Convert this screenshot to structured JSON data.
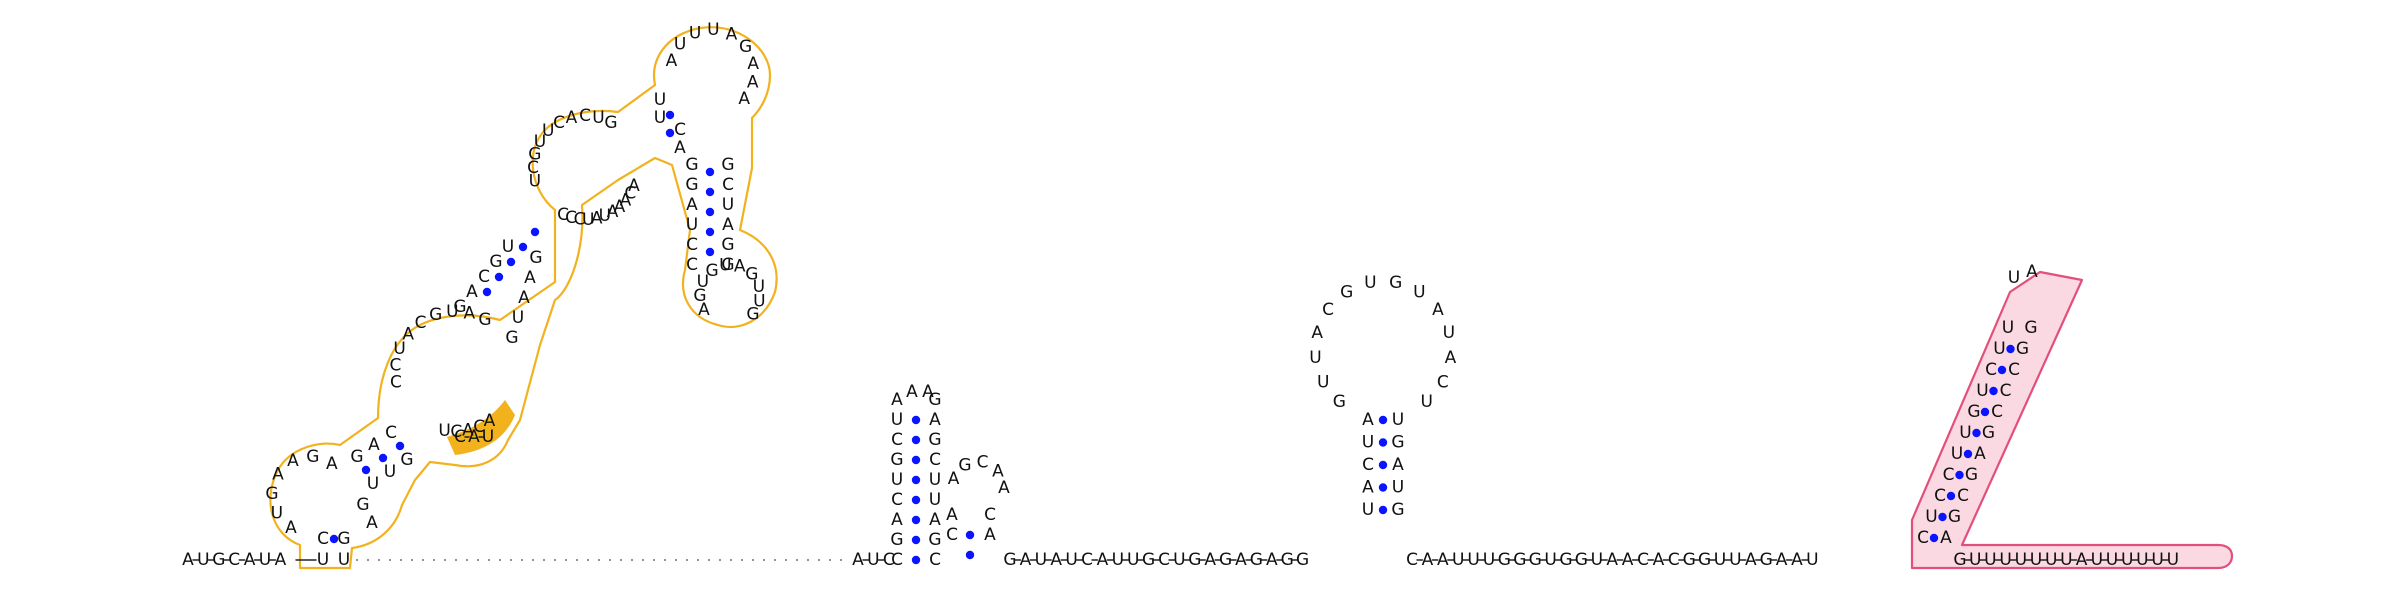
{
  "diagram": {
    "kind": "RNA secondary structure",
    "colors": {
      "background": "#ffffff",
      "base_pair_dot": "#0a14ff",
      "domain1_outline": "#f2b21e",
      "domain1_fill": "#ffffff",
      "domain1_highlight": "#f2b21e",
      "domain2_outline": "#e34f7b",
      "domain2_fill": "#fbd9e3"
    },
    "sequence_5prime": "AUGCAUA",
    "domain1": {
      "outer_left": "U",
      "outer_right": "U",
      "helix1_left": "C",
      "helix1_right": "G",
      "hairpin1_loop": "AUGAAGA",
      "helix2_left": "GAC",
      "helix2_right": "UUG",
      "interior_loop_left": "CCUACGUAG",
      "interior_loop_right": "ACACU",
      "helix3_left": "GACGU",
      "helix3_right": "GUAAG",
      "interior_loop2_left": "UCGUUCACUG",
      "interior_loop2_right": "ACAAAUAUCCC",
      "helix4_left": "UU",
      "helix4_right": "AC",
      "hairpin2_loop": "AUUUAGAAA",
      "helix5_left": "GGAUCC",
      "helix5_right": "GCUAGG",
      "hairpin3_loop": "AGUGUAGUUG",
      "highlighted_bases": "CAU"
    },
    "linker_dashes": 40,
    "stem2": {
      "left_strand": "AUCGUCAGCUU",
      "right_strand": "GAGCUUAGCAAG",
      "loop": "UA",
      "inner_loop": "AGCAA"
    },
    "linker2": "GAUAUCAUUGCUGAGAGAGG",
    "stem3": {
      "left_strand": "AUCAU",
      "right_strand": "UGAUG",
      "loop": "GUUACGUGUAUACU"
    },
    "linker3": "CAAUUUGGGUGGUAACACGGUUAGAAU",
    "domain2": {
      "left_strand": "CUCCUUGUCUU",
      "right_strand": "AGCGAGCCCGG",
      "loop": "UA"
    },
    "tail_3prime": "GUUUUUUUAUUUUUU"
  }
}
